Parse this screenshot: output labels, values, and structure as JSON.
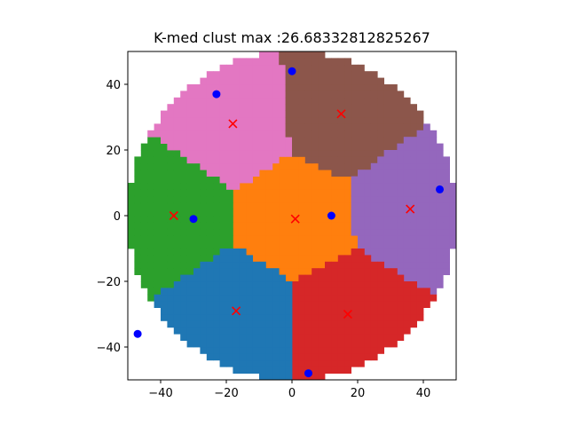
{
  "chart_data": {
    "type": "scatter",
    "title": "K-med clust max :26.68332812825267",
    "xlabel": "",
    "ylabel": "",
    "xlim": [
      -50,
      50
    ],
    "ylim": [
      -50,
      50
    ],
    "xticks": [
      -40,
      -20,
      0,
      20,
      40
    ],
    "yticks": [
      -40,
      -20,
      0,
      20,
      40
    ],
    "disk_radius": 50,
    "grid": false,
    "clusters": [
      {
        "color": "#ff7f0e",
        "centroid": [
          1,
          -1
        ]
      },
      {
        "color": "#2ca02c",
        "centroid": [
          -36,
          0
        ]
      },
      {
        "color": "#e377c2",
        "centroid": [
          -18,
          28
        ]
      },
      {
        "color": "#8c564b",
        "centroid": [
          15,
          31
        ]
      },
      {
        "color": "#9467bd",
        "centroid": [
          36,
          2
        ]
      },
      {
        "color": "#d62728",
        "centroid": [
          17,
          -30
        ]
      },
      {
        "color": "#1f77b4",
        "centroid": [
          -17,
          -29
        ]
      }
    ],
    "series": [
      {
        "name": "",
        "marker": "x",
        "color": "#ff0000",
        "x": [
          1,
          -36,
          -18,
          15,
          36,
          17,
          -17
        ],
        "y": [
          -1,
          0,
          28,
          31,
          2,
          -30,
          -29
        ]
      },
      {
        "name": "",
        "marker": "o",
        "color": "#0000ff",
        "x": [
          -30,
          12,
          -23,
          0,
          45,
          5,
          -47
        ],
        "y": [
          -1,
          0,
          37,
          44,
          8,
          -48,
          -36
        ]
      }
    ]
  }
}
